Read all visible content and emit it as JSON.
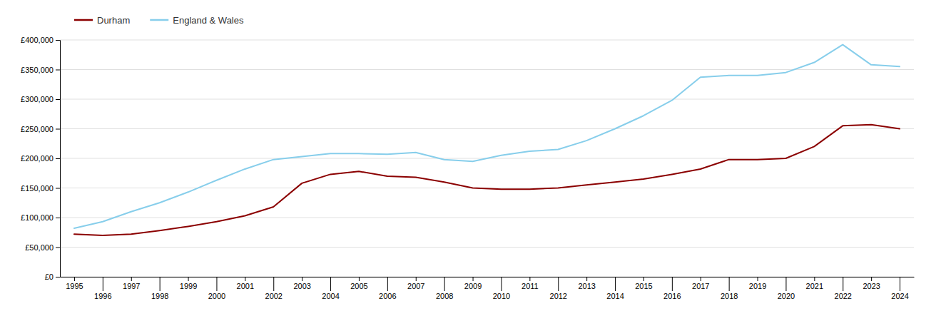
{
  "chart_data": {
    "type": "line",
    "x": [
      1995,
      1996,
      1997,
      1998,
      1999,
      2000,
      2001,
      2002,
      2003,
      2004,
      2005,
      2006,
      2007,
      2008,
      2009,
      2010,
      2011,
      2012,
      2013,
      2014,
      2015,
      2016,
      2017,
      2018,
      2019,
      2020,
      2021,
      2022,
      2023,
      2024
    ],
    "series": [
      {
        "name": "Durham",
        "color": "#8B0000",
        "values": [
          72000,
          70000,
          72000,
          78000,
          85000,
          93000,
          103000,
          118000,
          158000,
          173000,
          178000,
          170000,
          168000,
          160000,
          150000,
          148000,
          148000,
          150000,
          155000,
          160000,
          165000,
          173000,
          182000,
          198000,
          198000,
          200000,
          220000,
          255000,
          257000,
          250000
        ]
      },
      {
        "name": "England & Wales",
        "color": "#87CEEB",
        "values": [
          82000,
          93000,
          110000,
          125000,
          143000,
          163000,
          182000,
          198000,
          203000,
          208000,
          208000,
          207000,
          210000,
          198000,
          195000,
          205000,
          212000,
          215000,
          230000,
          250000,
          272000,
          298000,
          337000,
          340000,
          340000,
          345000,
          362000,
          392000,
          358000,
          355000
        ]
      }
    ],
    "xlim": [
      1994.5,
      2024.5
    ],
    "xticks": [
      1995,
      1996,
      1997,
      1998,
      1999,
      2000,
      2001,
      2002,
      2003,
      2004,
      2005,
      2006,
      2007,
      2008,
      2009,
      2010,
      2011,
      2012,
      2013,
      2014,
      2015,
      2016,
      2017,
      2018,
      2019,
      2020,
      2021,
      2022,
      2023,
      2024
    ],
    "ylim": [
      0,
      400000
    ],
    "yticks": [
      {
        "value": 0,
        "label": "£0"
      },
      {
        "value": 50000,
        "label": "£50,000"
      },
      {
        "value": 100000,
        "label": "£100,000"
      },
      {
        "value": 150000,
        "label": "£150,000"
      },
      {
        "value": 200000,
        "label": "£200,000"
      },
      {
        "value": 250000,
        "label": "£250,000"
      },
      {
        "value": 300000,
        "label": "£300,000"
      },
      {
        "value": 350000,
        "label": "£350,000"
      },
      {
        "value": 400000,
        "label": "£400,000"
      }
    ],
    "grid": true,
    "legend": "top-left"
  }
}
